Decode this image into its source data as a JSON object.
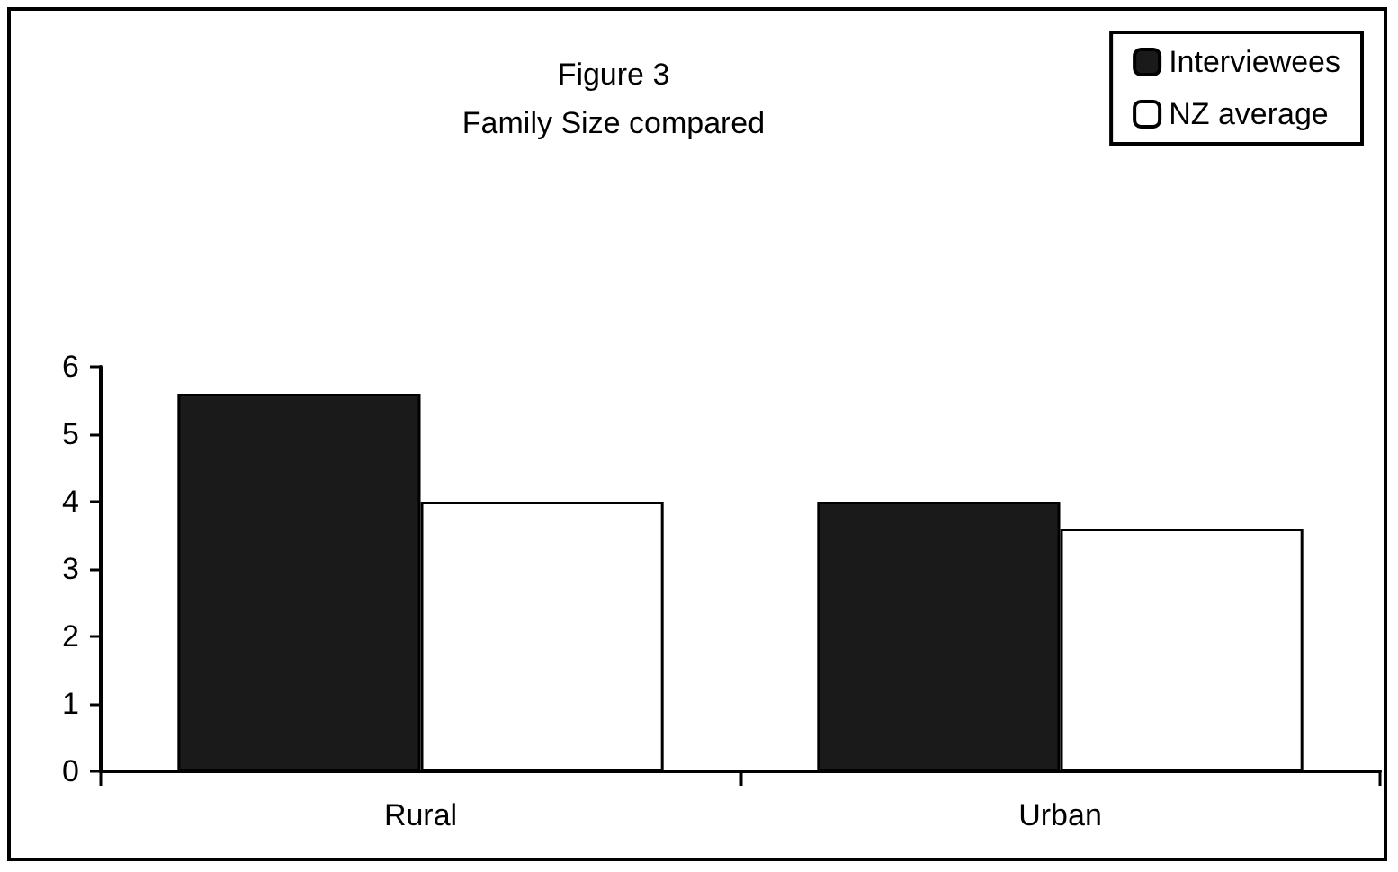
{
  "chart_data": {
    "type": "bar",
    "title": "Figure 3",
    "subtitle": "Family Size compared",
    "categories": [
      "Rural",
      "Urban"
    ],
    "series": [
      {
        "name": "Interviewees",
        "color": "#1a1a1a",
        "values": [
          5.6,
          4.0
        ]
      },
      {
        "name": "NZ average",
        "color": "#ffffff",
        "values": [
          4.0,
          3.6
        ]
      }
    ],
    "ylim": [
      0,
      6
    ],
    "yticks": [
      0,
      1,
      2,
      3,
      4,
      5,
      6
    ],
    "grid": false,
    "legend": "top right"
  }
}
